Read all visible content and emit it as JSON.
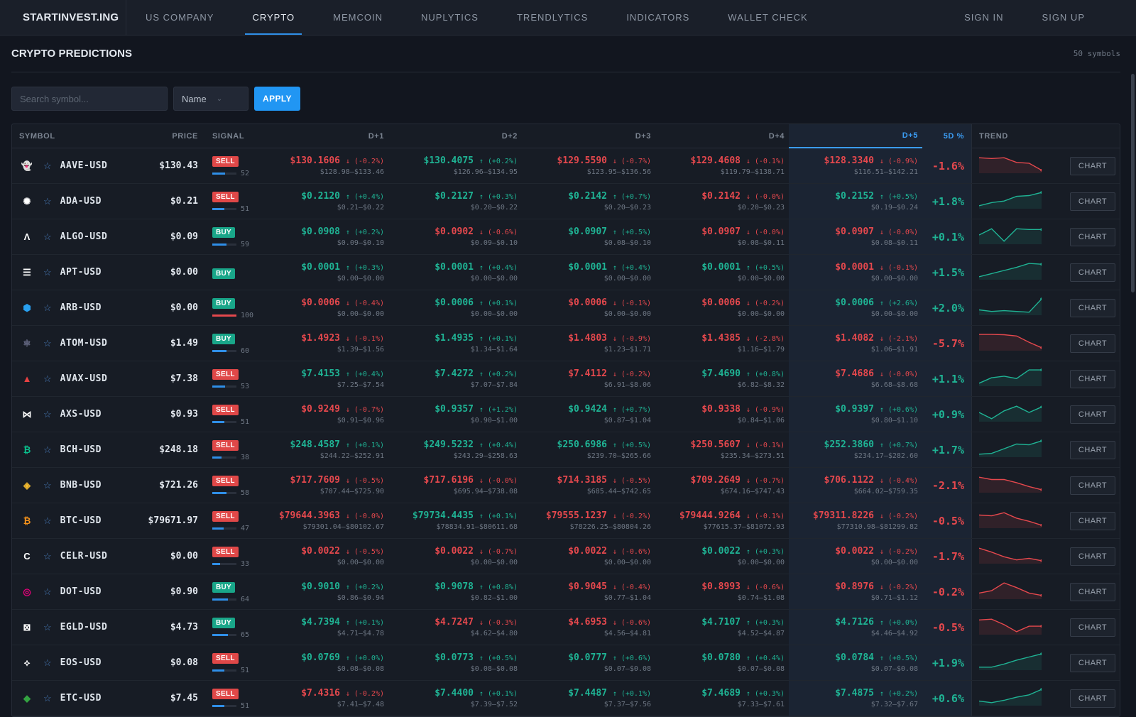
{
  "nav": {
    "brand": "STARTINVEST.ING",
    "items": [
      {
        "label": "US COMPANY",
        "active": false
      },
      {
        "label": "CRYPTO",
        "active": true
      },
      {
        "label": "MEMCOIN",
        "active": false
      },
      {
        "label": "NUPLYTICS",
        "active": false
      },
      {
        "label": "TRENDLYTICS",
        "active": false
      },
      {
        "label": "INDICATORS",
        "active": false
      },
      {
        "label": "WALLET CHECK",
        "active": false
      }
    ],
    "sign_in": "SIGN IN",
    "sign_up": "SIGN UP"
  },
  "page": {
    "title": "CRYPTO PREDICTIONS",
    "count": "50 symbols"
  },
  "filters": {
    "search_placeholder": "Search symbol...",
    "sort_value": "Name",
    "apply_label": "APPLY"
  },
  "table": {
    "headers": {
      "symbol": "SYMBOL",
      "price": "PRICE",
      "signal": "SIGNAL",
      "d1": "D+1",
      "d2": "D+2",
      "d3": "D+3",
      "d4": "D+4",
      "d5": "D+5",
      "pct": "5D %",
      "trend": "TREND"
    },
    "chart_label": "CHART",
    "rows": [
      {
        "symbol": "AAVE-USD",
        "icon": "aave-icon",
        "icon_color": "#b6509e",
        "icon_glyph": "👻",
        "price": "$130.43",
        "signal": "SELL",
        "conf": 52,
        "d": [
          [
            "$130.1606",
            "↓ (-0.2%)",
            "$128.98–$133.46",
            "down"
          ],
          [
            "$130.4075",
            "↑ (+0.2%)",
            "$126.96–$134.95",
            "up"
          ],
          [
            "$129.5590",
            "↓ (-0.7%)",
            "$123.95–$136.56",
            "down"
          ],
          [
            "$129.4608",
            "↓ (-0.1%)",
            "$119.79–$138.71",
            "down"
          ],
          [
            "$128.3340",
            "↓ (-0.9%)",
            "$116.51–$142.21",
            "down"
          ]
        ],
        "pct": "-1.6%",
        "dir": "down",
        "trend": [
          0.9,
          0.85,
          0.9,
          0.6,
          0.55,
          0.1
        ]
      },
      {
        "symbol": "ADA-USD",
        "icon": "ada-icon",
        "icon_color": "#ffffff",
        "icon_glyph": "✺",
        "price": "$0.21",
        "signal": "SELL",
        "conf": 51,
        "d": [
          [
            "$0.2120",
            "↑ (+0.4%)",
            "$0.21–$0.22",
            "up"
          ],
          [
            "$0.2127",
            "↑ (+0.3%)",
            "$0.20–$0.22",
            "up"
          ],
          [
            "$0.2142",
            "↑ (+0.7%)",
            "$0.20–$0.23",
            "up"
          ],
          [
            "$0.2142",
            "↓ (-0.0%)",
            "$0.20–$0.23",
            "down"
          ],
          [
            "$0.2152",
            "↑ (+0.5%)",
            "$0.19–$0.24",
            "up"
          ]
        ],
        "pct": "+1.8%",
        "dir": "up",
        "trend": [
          0.1,
          0.3,
          0.4,
          0.7,
          0.75,
          0.95
        ]
      },
      {
        "symbol": "ALGO-USD",
        "icon": "algo-icon",
        "icon_color": "#ffffff",
        "icon_glyph": "Λ",
        "price": "$0.09",
        "signal": "BUY",
        "conf": 59,
        "d": [
          [
            "$0.0908",
            "↑ (+0.2%)",
            "$0.09–$0.10",
            "up"
          ],
          [
            "$0.0902",
            "↓ (-0.6%)",
            "$0.09–$0.10",
            "down"
          ],
          [
            "$0.0907",
            "↑ (+0.5%)",
            "$0.08–$0.10",
            "up"
          ],
          [
            "$0.0907",
            "↓ (-0.0%)",
            "$0.08–$0.11",
            "down"
          ],
          [
            "$0.0907",
            "↓ (-0.0%)",
            "$0.08–$0.11",
            "down"
          ]
        ],
        "pct": "+0.1%",
        "dir": "up",
        "trend": [
          0.5,
          0.9,
          0.1,
          0.9,
          0.85,
          0.85
        ]
      },
      {
        "symbol": "APT-USD",
        "icon": "apt-icon",
        "icon_color": "#ffffff",
        "icon_glyph": "☰",
        "price": "$0.00",
        "signal": "BUY",
        "conf": null,
        "d": [
          [
            "$0.0001",
            "↑ (+0.3%)",
            "$0.00–$0.00",
            "up"
          ],
          [
            "$0.0001",
            "↑ (+0.4%)",
            "$0.00–$0.00",
            "up"
          ],
          [
            "$0.0001",
            "↑ (+0.4%)",
            "$0.00–$0.00",
            "up"
          ],
          [
            "$0.0001",
            "↑ (+0.5%)",
            "$0.00–$0.00",
            "up"
          ],
          [
            "$0.0001",
            "↓ (-0.1%)",
            "$0.00–$0.00",
            "down"
          ]
        ],
        "pct": "+1.5%",
        "dir": "up",
        "trend": [
          0.1,
          0.3,
          0.5,
          0.7,
          0.95,
          0.9
        ]
      },
      {
        "symbol": "ARB-USD",
        "icon": "arb-icon",
        "icon_color": "#28a0f0",
        "icon_glyph": "⬢",
        "price": "$0.00",
        "signal": "BUY",
        "conf": 100,
        "d": [
          [
            "$0.0006",
            "↓ (-0.4%)",
            "$0.00–$0.00",
            "down"
          ],
          [
            "$0.0006",
            "↑ (+0.1%)",
            "$0.00–$0.00",
            "up"
          ],
          [
            "$0.0006",
            "↓ (-0.1%)",
            "$0.00–$0.00",
            "down"
          ],
          [
            "$0.0006",
            "↓ (-0.2%)",
            "$0.00–$0.00",
            "down"
          ],
          [
            "$0.0006",
            "↑ (+2.6%)",
            "$0.00–$0.00",
            "up"
          ]
        ],
        "pct": "+2.0%",
        "dir": "up",
        "trend": [
          0.25,
          0.15,
          0.2,
          0.15,
          0.1,
          0.95
        ]
      },
      {
        "symbol": "ATOM-USD",
        "icon": "atom-icon",
        "icon_color": "#6f7390",
        "icon_glyph": "⚛",
        "price": "$1.49",
        "signal": "BUY",
        "conf": 60,
        "d": [
          [
            "$1.4923",
            "↓ (-0.1%)",
            "$1.39–$1.56",
            "down"
          ],
          [
            "$1.4935",
            "↑ (+0.1%)",
            "$1.34–$1.64",
            "up"
          ],
          [
            "$1.4803",
            "↓ (-0.9%)",
            "$1.23–$1.71",
            "down"
          ],
          [
            "$1.4385",
            "↓ (-2.8%)",
            "$1.16–$1.79",
            "down"
          ],
          [
            "$1.4082",
            "↓ (-2.1%)",
            "$1.06–$1.91",
            "down"
          ]
        ],
        "pct": "-5.7%",
        "dir": "down",
        "trend": [
          0.95,
          0.95,
          0.93,
          0.85,
          0.45,
          0.1
        ]
      },
      {
        "symbol": "AVAX-USD",
        "icon": "avax-icon",
        "icon_color": "#e84142",
        "icon_glyph": "▲",
        "price": "$7.38",
        "signal": "SELL",
        "conf": 53,
        "d": [
          [
            "$7.4153",
            "↑ (+0.4%)",
            "$7.25–$7.54",
            "up"
          ],
          [
            "$7.4272",
            "↑ (+0.2%)",
            "$7.07–$7.84",
            "up"
          ],
          [
            "$7.4112",
            "↓ (-0.2%)",
            "$6.91–$8.06",
            "down"
          ],
          [
            "$7.4690",
            "↑ (+0.8%)",
            "$6.82–$8.32",
            "up"
          ],
          [
            "$7.4686",
            "↓ (-0.0%)",
            "$6.68–$8.68",
            "down"
          ]
        ],
        "pct": "+1.1%",
        "dir": "up",
        "trend": [
          0.1,
          0.45,
          0.55,
          0.4,
          0.95,
          0.95
        ]
      },
      {
        "symbol": "AXS-USD",
        "icon": "axs-icon",
        "icon_color": "#ffffff",
        "icon_glyph": "⋈",
        "price": "$0.93",
        "signal": "SELL",
        "conf": 51,
        "d": [
          [
            "$0.9249",
            "↓ (-0.7%)",
            "$0.91–$0.96",
            "down"
          ],
          [
            "$0.9357",
            "↑ (+1.2%)",
            "$0.90–$1.00",
            "up"
          ],
          [
            "$0.9424",
            "↑ (+0.7%)",
            "$0.87–$1.04",
            "up"
          ],
          [
            "$0.9338",
            "↓ (-0.9%)",
            "$0.84–$1.06",
            "down"
          ],
          [
            "$0.9397",
            "↑ (+0.6%)",
            "$0.80–$1.10",
            "up"
          ]
        ],
        "pct": "+0.9%",
        "dir": "up",
        "trend": [
          0.5,
          0.1,
          0.6,
          0.9,
          0.5,
          0.85
        ]
      },
      {
        "symbol": "BCH-USD",
        "icon": "bch-icon",
        "icon_color": "#0ac18e",
        "icon_glyph": "₿",
        "price": "$248.18",
        "signal": "SELL",
        "conf": 38,
        "d": [
          [
            "$248.4587",
            "↑ (+0.1%)",
            "$244.22–$252.91",
            "up"
          ],
          [
            "$249.5232",
            "↑ (+0.4%)",
            "$243.29–$258.63",
            "up"
          ],
          [
            "$250.6986",
            "↑ (+0.5%)",
            "$239.70–$265.66",
            "up"
          ],
          [
            "$250.5607",
            "↓ (-0.1%)",
            "$235.34–$273.51",
            "down"
          ],
          [
            "$252.3860",
            "↑ (+0.7%)",
            "$234.17–$282.60",
            "up"
          ]
        ],
        "pct": "+1.7%",
        "dir": "up",
        "trend": [
          0.1,
          0.15,
          0.45,
          0.75,
          0.7,
          0.95
        ]
      },
      {
        "symbol": "BNB-USD",
        "icon": "bnb-icon",
        "icon_color": "#f3ba2f",
        "icon_glyph": "◈",
        "price": "$721.26",
        "signal": "SELL",
        "conf": 58,
        "d": [
          [
            "$717.7609",
            "↓ (-0.5%)",
            "$707.44–$725.90",
            "down"
          ],
          [
            "$717.6196",
            "↓ (-0.0%)",
            "$695.94–$738.08",
            "down"
          ],
          [
            "$714.3185",
            "↓ (-0.5%)",
            "$685.44–$742.65",
            "down"
          ],
          [
            "$709.2649",
            "↓ (-0.7%)",
            "$674.16–$747.43",
            "down"
          ],
          [
            "$706.1122",
            "↓ (-0.4%)",
            "$664.02–$759.35",
            "down"
          ]
        ],
        "pct": "-2.1%",
        "dir": "down",
        "trend": [
          0.9,
          0.75,
          0.75,
          0.55,
          0.3,
          0.1
        ]
      },
      {
        "symbol": "BTC-USD",
        "icon": "btc-icon",
        "icon_color": "#f7931a",
        "icon_glyph": "₿",
        "price": "$79671.97",
        "signal": "SELL",
        "conf": 47,
        "d": [
          [
            "$79644.3963",
            "↓ (-0.0%)",
            "$79301.04–$80102.67",
            "down"
          ],
          [
            "$79734.4435",
            "↑ (+0.1%)",
            "$78834.91–$80611.68",
            "up"
          ],
          [
            "$79555.1237",
            "↓ (-0.2%)",
            "$78226.25–$80804.26",
            "down"
          ],
          [
            "$79444.9264",
            "↓ (-0.1%)",
            "$77615.37–$81072.93",
            "down"
          ],
          [
            "$79311.8226",
            "↓ (-0.2%)",
            "$77310.98–$81299.82",
            "down"
          ]
        ],
        "pct": "-0.5%",
        "dir": "down",
        "trend": [
          0.75,
          0.7,
          0.9,
          0.55,
          0.35,
          0.1
        ]
      },
      {
        "symbol": "CELR-USD",
        "icon": "celr-icon",
        "icon_color": "#ffffff",
        "icon_glyph": "C",
        "price": "$0.00",
        "signal": "SELL",
        "conf": 33,
        "d": [
          [
            "$0.0022",
            "↓ (-0.5%)",
            "$0.00–$0.00",
            "down"
          ],
          [
            "$0.0022",
            "↓ (-0.7%)",
            "$0.00–$0.00",
            "down"
          ],
          [
            "$0.0022",
            "↓ (-0.6%)",
            "$0.00–$0.00",
            "down"
          ],
          [
            "$0.0022",
            "↑ (+0.3%)",
            "$0.00–$0.00",
            "up"
          ],
          [
            "$0.0022",
            "↓ (-0.2%)",
            "$0.00–$0.00",
            "down"
          ]
        ],
        "pct": "-1.7%",
        "dir": "down",
        "trend": [
          0.9,
          0.65,
          0.35,
          0.15,
          0.25,
          0.1
        ]
      },
      {
        "symbol": "DOT-USD",
        "icon": "dot-icon",
        "icon_color": "#e6007a",
        "icon_glyph": "◎",
        "price": "$0.90",
        "signal": "BUY",
        "conf": 64,
        "d": [
          [
            "$0.9010",
            "↑ (+0.2%)",
            "$0.86–$0.94",
            "up"
          ],
          [
            "$0.9078",
            "↑ (+0.8%)",
            "$0.82–$1.00",
            "up"
          ],
          [
            "$0.9045",
            "↓ (-0.4%)",
            "$0.77–$1.04",
            "down"
          ],
          [
            "$0.8993",
            "↓ (-0.6%)",
            "$0.74–$1.08",
            "down"
          ],
          [
            "$0.8976",
            "↓ (-0.2%)",
            "$0.71–$1.12",
            "down"
          ]
        ],
        "pct": "-0.2%",
        "dir": "down",
        "trend": [
          0.3,
          0.45,
          0.95,
          0.65,
          0.3,
          0.15
        ]
      },
      {
        "symbol": "EGLD-USD",
        "icon": "egld-icon",
        "icon_color": "#ffffff",
        "icon_glyph": "⊠",
        "price": "$4.73",
        "signal": "BUY",
        "conf": 65,
        "d": [
          [
            "$4.7394",
            "↑ (+0.1%)",
            "$4.71–$4.78",
            "up"
          ],
          [
            "$4.7247",
            "↓ (-0.3%)",
            "$4.62–$4.80",
            "down"
          ],
          [
            "$4.6953",
            "↓ (-0.6%)",
            "$4.56–$4.81",
            "down"
          ],
          [
            "$4.7107",
            "↑ (+0.3%)",
            "$4.52–$4.87",
            "up"
          ],
          [
            "$4.7126",
            "↑ (+0.0%)",
            "$4.46–$4.92",
            "up"
          ]
        ],
        "pct": "-0.5%",
        "dir": "down",
        "trend": [
          0.85,
          0.9,
          0.55,
          0.1,
          0.45,
          0.45
        ]
      },
      {
        "symbol": "EOS-USD",
        "icon": "eos-icon",
        "icon_color": "#ffffff",
        "icon_glyph": "⟡",
        "price": "$0.08",
        "signal": "SELL",
        "conf": 51,
        "d": [
          [
            "$0.0769",
            "↑ (+0.0%)",
            "$0.08–$0.08",
            "up"
          ],
          [
            "$0.0773",
            "↑ (+0.5%)",
            "$0.08–$0.08",
            "up"
          ],
          [
            "$0.0777",
            "↑ (+0.6%)",
            "$0.07–$0.08",
            "up"
          ],
          [
            "$0.0780",
            "↑ (+0.4%)",
            "$0.07–$0.08",
            "up"
          ],
          [
            "$0.0784",
            "↑ (+0.5%)",
            "$0.07–$0.08",
            "up"
          ]
        ],
        "pct": "+1.9%",
        "dir": "up",
        "trend": [
          0.1,
          0.1,
          0.3,
          0.55,
          0.75,
          0.95
        ]
      },
      {
        "symbol": "ETC-USD",
        "icon": "etc-icon",
        "icon_color": "#33a341",
        "icon_glyph": "◆",
        "price": "$7.45",
        "signal": "SELL",
        "conf": 51,
        "d": [
          [
            "$7.4316",
            "↓ (-0.2%)",
            "$7.41–$7.48",
            "down"
          ],
          [
            "$7.4400",
            "↑ (+0.1%)",
            "$7.39–$7.52",
            "up"
          ],
          [
            "$7.4487",
            "↑ (+0.1%)",
            "$7.37–$7.56",
            "up"
          ],
          [
            "$7.4689",
            "↑ (+0.3%)",
            "$7.33–$7.61",
            "up"
          ],
          [
            "$7.4875",
            "↑ (+0.2%)",
            "$7.32–$7.67",
            "up"
          ]
        ],
        "pct": "+0.6%",
        "dir": "up",
        "trend": [
          0.2,
          0.1,
          0.25,
          0.45,
          0.6,
          0.95
        ]
      }
    ]
  },
  "colors": {
    "up": "#1fb394",
    "down": "#e5484d",
    "accent": "#2196f3"
  }
}
